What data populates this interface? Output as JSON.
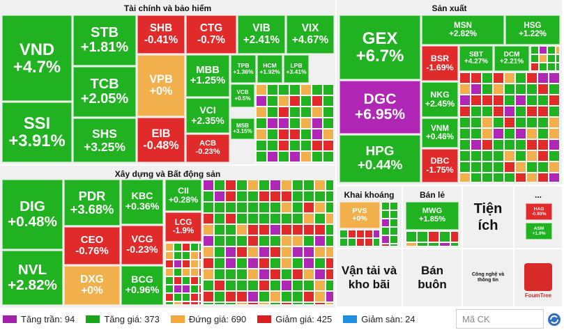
{
  "sectors": [
    {
      "title": "Tài chính và bảo hiểm",
      "tiles": [
        {
          "ticker": "VND",
          "change": "+4.7%",
          "color": "#21b221"
        },
        {
          "ticker": "SSI",
          "change": "+3.91%",
          "color": "#21b221"
        },
        {
          "ticker": "STB",
          "change": "+1.81%",
          "color": "#21b221"
        },
        {
          "ticker": "TCB",
          "change": "+2.05%",
          "color": "#21b221"
        },
        {
          "ticker": "SHS",
          "change": "+3.25%",
          "color": "#21b221"
        },
        {
          "ticker": "SHB",
          "change": "-0.41%",
          "color": "#e12a2a"
        },
        {
          "ticker": "VPB",
          "change": "+0%",
          "color": "#f2b04c"
        },
        {
          "ticker": "EIB",
          "change": "-0.48%",
          "color": "#e12a2a"
        },
        {
          "ticker": "CTG",
          "change": "-0.7%",
          "color": "#e12a2a"
        },
        {
          "ticker": "VIB",
          "change": "+2.41%",
          "color": "#21b221"
        },
        {
          "ticker": "VIX",
          "change": "+4.67%",
          "color": "#21b221"
        },
        {
          "ticker": "MBB",
          "change": "+1.25%",
          "color": "#21b221"
        },
        {
          "ticker": "VCI",
          "change": "+2.35%",
          "color": "#21b221"
        },
        {
          "ticker": "ACB",
          "change": "-0.23%",
          "color": "#e12a2a"
        },
        {
          "ticker": "TPB",
          "change": "+1.36%",
          "color": "#21b221"
        },
        {
          "ticker": "HCM",
          "change": "+1.92%",
          "color": "#21b221"
        },
        {
          "ticker": "LPB",
          "change": "+3.41%",
          "color": "#21b221"
        },
        {
          "ticker": "VCB",
          "change": "+0.5%",
          "color": "#21b221"
        },
        {
          "ticker": "MSB",
          "change": "+3.15%",
          "color": "#21b221"
        }
      ]
    },
    {
      "title": "Xây dựng và Bất động sản",
      "tiles": [
        {
          "ticker": "DIG",
          "change": "+0.48%",
          "color": "#21b221"
        },
        {
          "ticker": "NVL",
          "change": "+2.82%",
          "color": "#21b221"
        },
        {
          "ticker": "PDR",
          "change": "+3.68%",
          "color": "#21b221"
        },
        {
          "ticker": "CEO",
          "change": "-0.76%",
          "color": "#e12a2a"
        },
        {
          "ticker": "DXG",
          "change": "+0%",
          "color": "#f2b04c"
        },
        {
          "ticker": "KBC",
          "change": "+0.36%",
          "color": "#21b221"
        },
        {
          "ticker": "VCG",
          "change": "-0.23%",
          "color": "#e12a2a"
        },
        {
          "ticker": "BCG",
          "change": "+0.96%",
          "color": "#21b221"
        },
        {
          "ticker": "CII",
          "change": "+0.28%",
          "color": "#21b221"
        },
        {
          "ticker": "LCG",
          "change": "-1.9%",
          "color": "#e12a2a"
        }
      ]
    },
    {
      "title": "Sản xuất",
      "tiles": [
        {
          "ticker": "GEX",
          "change": "+6.7%",
          "color": "#21b221"
        },
        {
          "ticker": "DGC",
          "change": "+6.95%",
          "color": "#b026b5"
        },
        {
          "ticker": "HPG",
          "change": "+0.44%",
          "color": "#21b221"
        },
        {
          "ticker": "MSN",
          "change": "+2.82%",
          "color": "#21b221"
        },
        {
          "ticker": "HSG",
          "change": "+1.22%",
          "color": "#21b221"
        },
        {
          "ticker": "BSR",
          "change": "-1.69%",
          "color": "#e12a2a"
        },
        {
          "ticker": "NKG",
          "change": "+2.45%",
          "color": "#21b221"
        },
        {
          "ticker": "VNM",
          "change": "+0.46%",
          "color": "#21b221"
        },
        {
          "ticker": "DBC",
          "change": "-1.75%",
          "color": "#e12a2a"
        },
        {
          "ticker": "SBT",
          "change": "+4.27%",
          "color": "#21b221"
        },
        {
          "ticker": "DCM",
          "change": "+2.21%",
          "color": "#21b221"
        }
      ]
    },
    {
      "title": "Khai khoáng",
      "tiles": [
        {
          "ticker": "PVS",
          "change": "+0%",
          "color": "#f2b04c"
        }
      ]
    },
    {
      "title": "Bán lẻ",
      "tiles": [
        {
          "ticker": "MWG",
          "change": "+1.85%",
          "color": "#21b221"
        }
      ]
    },
    {
      "title": "Tiện ích",
      "tiles": []
    },
    {
      "title": "...",
      "tiles": [
        {
          "ticker": "HAG",
          "change": "-0.93%",
          "color": "#e12a2a"
        },
        {
          "ticker": "ASM",
          "change": "+1.9%",
          "color": "#21b221"
        }
      ]
    },
    {
      "title": "Vận tải và kho bãi",
      "tiles": []
    },
    {
      "title": "Bán buôn",
      "tiles": []
    },
    {
      "title": "Công nghệ và thông tin",
      "tiles": []
    }
  ],
  "legend": [
    {
      "label": "Tăng trần: 94",
      "color": "#a020a8"
    },
    {
      "label": "Tăng giá: 373",
      "color": "#1aa51a"
    },
    {
      "label": "Đứng giá: 690",
      "color": "#f2a93b"
    },
    {
      "label": "Giảm giá: 425",
      "color": "#d81f1f"
    },
    {
      "label": "Giảm sàn: 24",
      "color": "#1e8fe0"
    }
  ],
  "search_placeholder": "Mã CK",
  "logo_text": "FoumTree"
}
